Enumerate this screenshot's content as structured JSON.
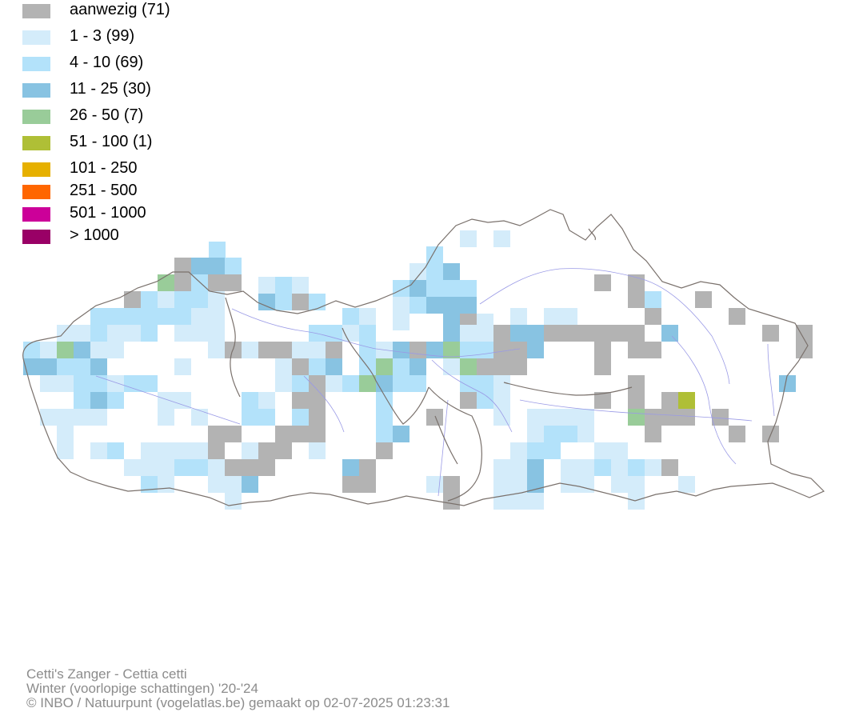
{
  "legend": {
    "items": [
      {
        "label": "aanwezig (71)",
        "color": "#b3b3b3"
      },
      {
        "label": "1 - 3 (99)",
        "color": "#d4ecfa"
      },
      {
        "label": "4 - 10 (69)",
        "color": "#b3e2fa"
      },
      {
        "label": "11 - 25 (30)",
        "color": "#88c3e2"
      },
      {
        "label": "26 - 50 (7)",
        "color": "#99cc99"
      },
      {
        "label": "51 - 100 (1)",
        "color": "#afbf36"
      },
      {
        "label": "101 - 250",
        "color": "#e6b000"
      },
      {
        "label": "251 - 500",
        "color": "#ff6600"
      },
      {
        "label": "501 - 1000",
        "color": "#cc0099"
      },
      {
        "label": "> 1000",
        "color": "#990066"
      }
    ]
  },
  "footer": {
    "species": "Cetti's Zanger - Cettia cetti",
    "period": "Winter (voorlopige schattingen) '20-'24",
    "credit": "© INBO / Natuurpunt (vogelatlas.be) gemaakt op 02-07-2025 01:23:31"
  },
  "map": {
    "colors": {
      "outline": "#7a716c",
      "rivers": "#9a9ae6"
    }
  }
}
